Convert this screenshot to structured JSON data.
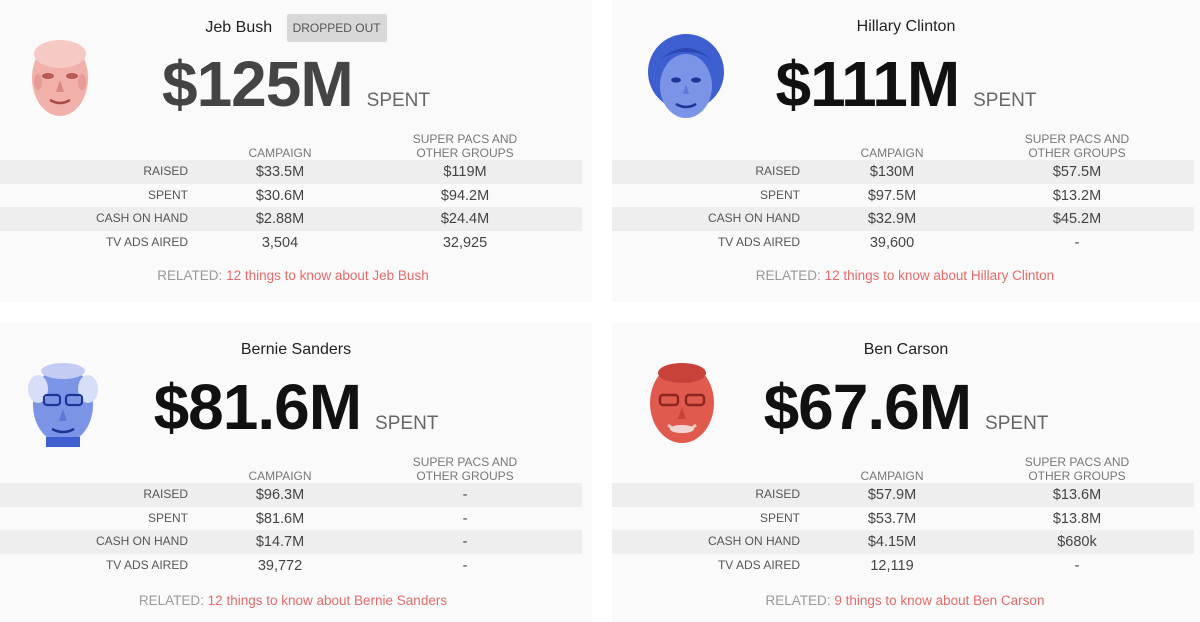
{
  "columns": {
    "campaign": "CAMPAIGN",
    "super_pacs_line1": "SUPER PACS AND",
    "super_pacs_line2": "OTHER GROUPS"
  },
  "row_labels": {
    "raised": "RAISED",
    "spent": "SPENT",
    "cash": "CASH ON HAND",
    "tv": "TV ADS AIRED"
  },
  "spent_suffix": "SPENT",
  "related_prefix": "RELATED:",
  "colors": {
    "related_link": "#e46b6b",
    "face_red": "#e05a4e",
    "face_blue": "#3d5fd0",
    "badge_bg": "#d8d8d8"
  },
  "candidates": [
    {
      "name": "Jeb Bush",
      "badge": "DROPPED OUT",
      "total": "$125M",
      "face_icon": "jeb-bush-portrait",
      "raised": {
        "campaign": "$33.5M",
        "groups": "$119M"
      },
      "spent": {
        "campaign": "$30.6M",
        "groups": "$94.2M"
      },
      "cash": {
        "campaign": "$2.88M",
        "groups": "$24.4M"
      },
      "tv": {
        "campaign": "3,504",
        "groups": "32,925"
      },
      "related_link": "12 things to know about Jeb Bush"
    },
    {
      "name": "Hillary Clinton",
      "badge": "",
      "total": "$111M",
      "face_icon": "hillary-clinton-portrait",
      "raised": {
        "campaign": "$130M",
        "groups": "$57.5M"
      },
      "spent": {
        "campaign": "$97.5M",
        "groups": "$13.2M"
      },
      "cash": {
        "campaign": "$32.9M",
        "groups": "$45.2M"
      },
      "tv": {
        "campaign": "39,600",
        "groups": "-"
      },
      "related_link": "12 things to know about Hillary Clinton"
    },
    {
      "name": "Bernie Sanders",
      "badge": "",
      "total": "$81.6M",
      "face_icon": "bernie-sanders-portrait",
      "raised": {
        "campaign": "$96.3M",
        "groups": "-"
      },
      "spent": {
        "campaign": "$81.6M",
        "groups": "-"
      },
      "cash": {
        "campaign": "$14.7M",
        "groups": "-"
      },
      "tv": {
        "campaign": "39,772",
        "groups": "-"
      },
      "related_link": "12 things to know about Bernie Sanders"
    },
    {
      "name": "Ben Carson",
      "badge": "",
      "total": "$67.6M",
      "face_icon": "ben-carson-portrait",
      "raised": {
        "campaign": "$57.9M",
        "groups": "$13.6M"
      },
      "spent": {
        "campaign": "$53.7M",
        "groups": "$13.8M"
      },
      "cash": {
        "campaign": "$4.15M",
        "groups": "$680k"
      },
      "tv": {
        "campaign": "12,119",
        "groups": "-"
      },
      "related_link": "9 things to know about Ben Carson"
    }
  ]
}
